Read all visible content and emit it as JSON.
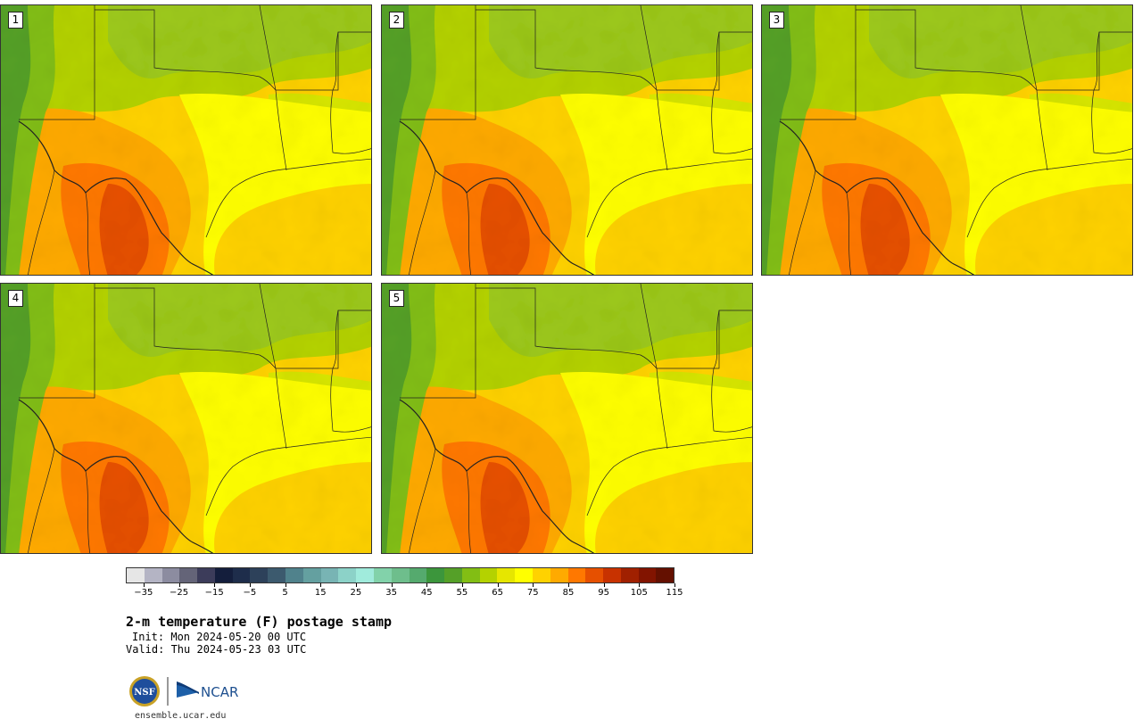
{
  "panels": [
    {
      "label": "1"
    },
    {
      "label": "2"
    },
    {
      "label": "3"
    },
    {
      "label": "4"
    },
    {
      "label": "5"
    }
  ],
  "colorbar": {
    "colors": [
      "#e6e6e6",
      "#b4b4c4",
      "#8c8ca0",
      "#646478",
      "#3c3c5a",
      "#141e3c",
      "#1e2d4b",
      "#2d415a",
      "#3c5a6e",
      "#50828c",
      "#64a0a0",
      "#78b4b4",
      "#8cd2c8",
      "#a0ebdc",
      "#82d2aa",
      "#6ebe8c",
      "#55aa6e",
      "#3c963c",
      "#55a028",
      "#82be14",
      "#b4d200",
      "#e6e600",
      "#ffff00",
      "#ffd200",
      "#ffaa00",
      "#ff7800",
      "#e65000",
      "#c83200",
      "#a02000",
      "#821400",
      "#641000"
    ],
    "ticks": [
      "−35",
      "−25",
      "−15",
      "−5",
      "5",
      "15",
      "25",
      "35",
      "45",
      "55",
      "65",
      "75",
      "85",
      "95",
      "105",
      "115"
    ]
  },
  "title": "2-m temperature (F) postage stamp",
  "init": "Init: Mon 2024-05-20 00 UTC",
  "valid": "Valid: Thu 2024-05-23 03 UTC",
  "logos": {
    "nsf": "NSF",
    "ncar": "NCAR"
  },
  "website": "ensemble.ucar.edu"
}
